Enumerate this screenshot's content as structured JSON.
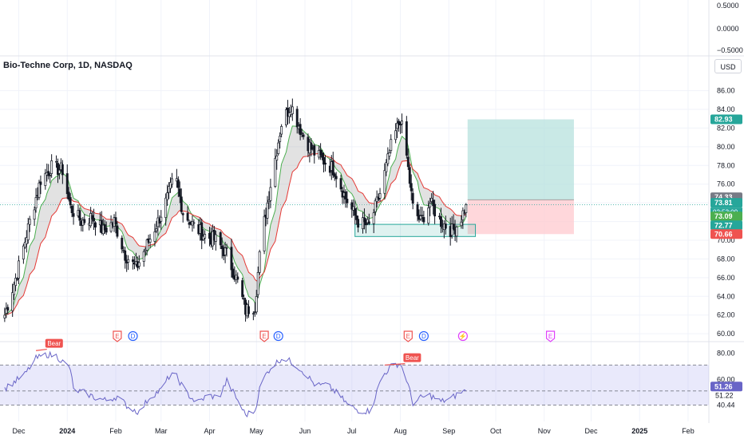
{
  "header": {
    "title": "Bio-Techne Corp, 1D, NASDAQ",
    "currency": "USD"
  },
  "top_pane": {
    "ticks": [
      "0.5000",
      "0.0000",
      "−0.5000"
    ]
  },
  "colors": {
    "bull": "#26a69a",
    "bear": "#ef5350",
    "candle": "#131722",
    "fast_ma": "#4caf50",
    "slow_ma": "#e53935",
    "ribbon": "#9e9e9e",
    "rsi_line": "#6965c7",
    "rsi_band": "#b6b5f2",
    "profit_zone": "#b2dfdb",
    "loss_zone": "#ffcdd2",
    "support_box": "#26a69a",
    "earnings": "#ef5350",
    "dividend": "#2962ff",
    "split": "#e040fb"
  },
  "chart_data": [
    {
      "type": "candlestick",
      "title": "Bio-Techne Corp, 1D, NASDAQ",
      "x_tick_labels": [
        "Dec",
        "2024",
        "Feb",
        "Mar",
        "Apr",
        "May",
        "Jun",
        "Jul",
        "Aug",
        "Sep",
        "Oct",
        "Nov",
        "Dec",
        "2025",
        "Feb"
      ],
      "y_tick_labels": [
        "60.00",
        "62.00",
        "64.00",
        "66.00",
        "68.00",
        "70.00",
        "72.00",
        "74.00",
        "76.00",
        "78.00",
        "80.00",
        "82.00",
        "84.00",
        "86.00"
      ],
      "ylim": [
        59.5,
        87.5
      ],
      "close_path": [
        [
          "2023-11-22",
          62.0
        ],
        [
          "2023-11-30",
          66.5
        ],
        [
          "2023-12-08",
          72.0
        ],
        [
          "2023-12-15",
          76.5
        ],
        [
          "2023-12-22",
          77.8
        ],
        [
          "2023-12-29",
          77.5
        ],
        [
          "2024-01-03",
          73.5
        ],
        [
          "2024-01-10",
          72.0
        ],
        [
          "2024-01-17",
          72.5
        ],
        [
          "2024-01-24",
          71.0
        ],
        [
          "2024-01-31",
          72.0
        ],
        [
          "2024-02-07",
          68.5
        ],
        [
          "2024-02-14",
          67.0
        ],
        [
          "2024-02-21",
          69.5
        ],
        [
          "2024-02-28",
          72.0
        ],
        [
          "2024-03-05",
          74.5
        ],
        [
          "2024-03-10",
          77.0
        ],
        [
          "2024-03-15",
          73.0
        ],
        [
          "2024-03-22",
          71.5
        ],
        [
          "2024-03-29",
          70.5
        ],
        [
          "2024-04-05",
          70.0
        ],
        [
          "2024-04-12",
          68.5
        ],
        [
          "2024-04-19",
          65.5
        ],
        [
          "2024-04-24",
          62.5
        ],
        [
          "2024-04-30",
          63.0
        ],
        [
          "2024-05-04",
          70.0
        ],
        [
          "2024-05-10",
          76.0
        ],
        [
          "2024-05-17",
          82.5
        ],
        [
          "2024-05-23",
          84.5
        ],
        [
          "2024-05-30",
          81.5
        ],
        [
          "2024-06-06",
          79.5
        ],
        [
          "2024-06-13",
          78.5
        ],
        [
          "2024-06-20",
          77.5
        ],
        [
          "2024-06-27",
          74.5
        ],
        [
          "2024-07-05",
          72.0
        ],
        [
          "2024-07-12",
          71.5
        ],
        [
          "2024-07-19",
          75.0
        ],
        [
          "2024-07-26",
          80.0
        ],
        [
          "2024-08-01",
          83.0
        ],
        [
          "2024-08-05",
          79.0
        ],
        [
          "2024-08-09",
          73.5
        ],
        [
          "2024-08-14",
          72.0
        ],
        [
          "2024-08-20",
          74.0
        ],
        [
          "2024-08-27",
          72.0
        ],
        [
          "2024-09-03",
          71.0
        ],
        [
          "2024-09-08",
          72.0
        ],
        [
          "2024-09-12",
          73.81
        ]
      ],
      "last_date": "2024-09-12",
      "ma_labels": [
        "73.09",
        "72.77"
      ],
      "price_tags": {
        "last": "73.81",
        "countdown": "02:53:09",
        "position_entry": "74.33",
        "target": "82.93",
        "stop": "70.66"
      },
      "support_zone": {
        "from": "2024-07-03",
        "to": "2024-09-18",
        "low": 70.4,
        "high": 71.7
      },
      "position": {
        "from": "2024-09-13",
        "to": "2024-11-20",
        "entry": 74.33,
        "target": 82.93,
        "stop": 70.66
      },
      "events": [
        {
          "kind": "earnings",
          "label": "E",
          "date": "2024-02-02"
        },
        {
          "kind": "dividend",
          "label": "D",
          "date": "2024-02-12"
        },
        {
          "kind": "earnings",
          "label": "E",
          "date": "2024-05-06"
        },
        {
          "kind": "dividend",
          "label": "D",
          "date": "2024-05-15"
        },
        {
          "kind": "earnings",
          "label": "E",
          "date": "2024-08-06"
        },
        {
          "kind": "dividend",
          "label": "D",
          "date": "2024-08-16"
        },
        {
          "kind": "split",
          "label": "⚡",
          "date": "2024-09-10"
        },
        {
          "kind": "earnings_future",
          "label": "E",
          "date": "2024-11-05"
        }
      ]
    },
    {
      "type": "line",
      "y_tick_labels": [
        "80.00",
        "60.00",
        "40.44"
      ],
      "ylim": [
        28,
        87
      ],
      "band": [
        40.44,
        71.0
      ],
      "mid_level": 51.22,
      "current_label": "51.26",
      "mid_label": "51.22",
      "rsi_path": [
        [
          "2023-11-22",
          53
        ],
        [
          "2023-11-28",
          58
        ],
        [
          "2023-12-05",
          64
        ],
        [
          "2023-12-12",
          76
        ],
        [
          "2023-12-19",
          79
        ],
        [
          "2023-12-25",
          78
        ],
        [
          "2024-01-03",
          68
        ],
        [
          "2024-01-05",
          52
        ],
        [
          "2024-01-12",
          50
        ],
        [
          "2024-01-19",
          46
        ],
        [
          "2024-01-26",
          44
        ],
        [
          "2024-02-02",
          47
        ],
        [
          "2024-02-09",
          39
        ],
        [
          "2024-02-16",
          35
        ],
        [
          "2024-02-23",
          47
        ],
        [
          "2024-03-01",
          52
        ],
        [
          "2024-03-06",
          62
        ],
        [
          "2024-03-10",
          64
        ],
        [
          "2024-03-17",
          50
        ],
        [
          "2024-03-24",
          42
        ],
        [
          "2024-03-31",
          48
        ],
        [
          "2024-04-07",
          46
        ],
        [
          "2024-04-12",
          59
        ],
        [
          "2024-04-19",
          44
        ],
        [
          "2024-04-24",
          33
        ],
        [
          "2024-04-30",
          36
        ],
        [
          "2024-05-04",
          58
        ],
        [
          "2024-05-10",
          69
        ],
        [
          "2024-05-18",
          77
        ],
        [
          "2024-05-25",
          72
        ],
        [
          "2024-06-01",
          65
        ],
        [
          "2024-06-08",
          55
        ],
        [
          "2024-06-15",
          56
        ],
        [
          "2024-06-22",
          49
        ],
        [
          "2024-06-29",
          40
        ],
        [
          "2024-07-06",
          36
        ],
        [
          "2024-07-13",
          36
        ],
        [
          "2024-07-20",
          62
        ],
        [
          "2024-07-27",
          71
        ],
        [
          "2024-08-01",
          72
        ],
        [
          "2024-08-05",
          60
        ],
        [
          "2024-08-09",
          42
        ],
        [
          "2024-08-14",
          46
        ],
        [
          "2024-08-20",
          48
        ],
        [
          "2024-08-27",
          43
        ],
        [
          "2024-09-03",
          46
        ],
        [
          "2024-09-08",
          50
        ],
        [
          "2024-09-12",
          51.26
        ]
      ],
      "divergence_labels": [
        {
          "label": "Bear",
          "date": "2023-12-19",
          "value": 83
        },
        {
          "label": "Bear",
          "date": "2024-08-04",
          "value": 72
        }
      ]
    }
  ]
}
